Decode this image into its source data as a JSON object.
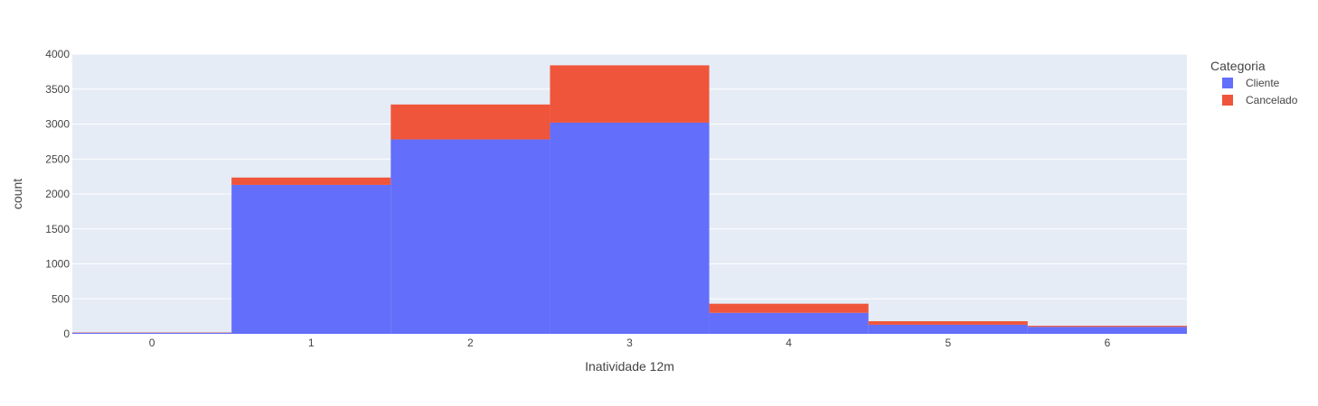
{
  "chart_data": {
    "type": "bar",
    "barmode": "stack",
    "categories": [
      "0",
      "1",
      "2",
      "3",
      "4",
      "5",
      "6"
    ],
    "series": [
      {
        "name": "Cliente",
        "color": "#636EFA",
        "values": [
          15,
          2130,
          2780,
          3020,
          300,
          130,
          100
        ]
      },
      {
        "name": "Cancelado",
        "color": "#EF553B",
        "values": [
          5,
          105,
          500,
          820,
          130,
          50,
          15
        ]
      }
    ],
    "xlabel": "Inatividade 12m",
    "ylabel": "count",
    "ylim": [
      0,
      4000
    ],
    "yticks": [
      "0",
      "500",
      "1000",
      "1500",
      "2000",
      "2500",
      "3000",
      "3500",
      "4000"
    ],
    "legend_title": "Categoria",
    "legend_position": "top-right",
    "grid": true,
    "plot_background": "#E5ECF6"
  }
}
